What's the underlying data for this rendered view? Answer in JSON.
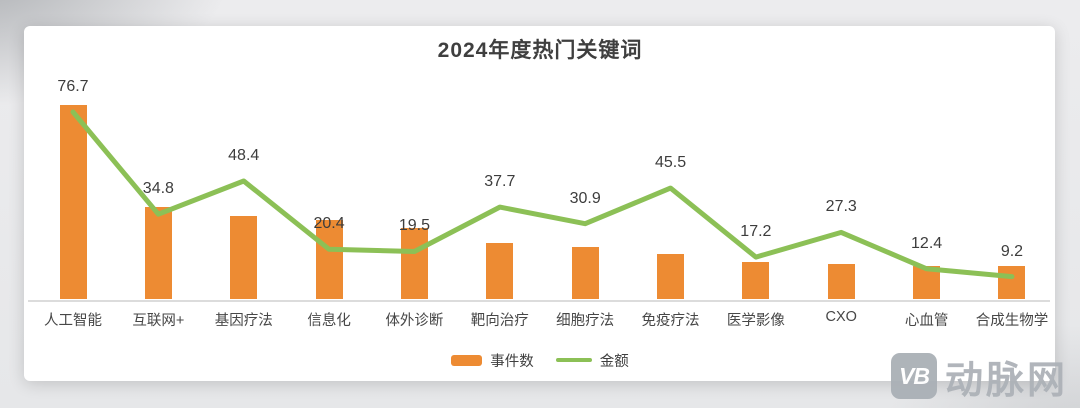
{
  "title": "2024年度热门关键词",
  "legend": {
    "bars_label": "事件数",
    "line_label": "金额"
  },
  "watermark": {
    "logo": "VB",
    "text": "动脉网"
  },
  "colors": {
    "bar": "#ED8B33",
    "line": "#8CC056",
    "title_text": "#3F3F3F",
    "label_text": "#3D3D3D",
    "axis": "#DCDCDC",
    "watermark_gray": "#ABB0B6"
  },
  "chart_data": {
    "type": "bar",
    "subtype": "bar+line-combo",
    "title": "2024年度热门关键词",
    "categories": [
      "人工智能",
      "互联网+",
      "基因疗法",
      "信息化",
      "体外诊断",
      "靶向治疗",
      "细胞疗法",
      "免疫疗法",
      "医学影像",
      "CXO",
      "心血管",
      "合成生物学"
    ],
    "series": [
      {
        "name": "事件数",
        "type": "bar",
        "color": "#ED8B33",
        "values_estimated_from_pixels": true,
        "values": [
          79.6,
          37.7,
          34.0,
          32.4,
          29.1,
          23.0,
          21.3,
          18.5,
          15.2,
          14.2,
          13.5,
          13.5
        ]
      },
      {
        "name": "金额",
        "type": "line",
        "color": "#8CC056",
        "data_labels_shown": true,
        "values": [
          76.7,
          34.8,
          48.4,
          20.4,
          19.5,
          37.7,
          30.9,
          45.5,
          17.2,
          27.3,
          12.4,
          9.2
        ]
      }
    ],
    "ylim": [
      0,
      85
    ],
    "grid": false,
    "x_axis_line": true,
    "legend_position": "bottom-center"
  }
}
